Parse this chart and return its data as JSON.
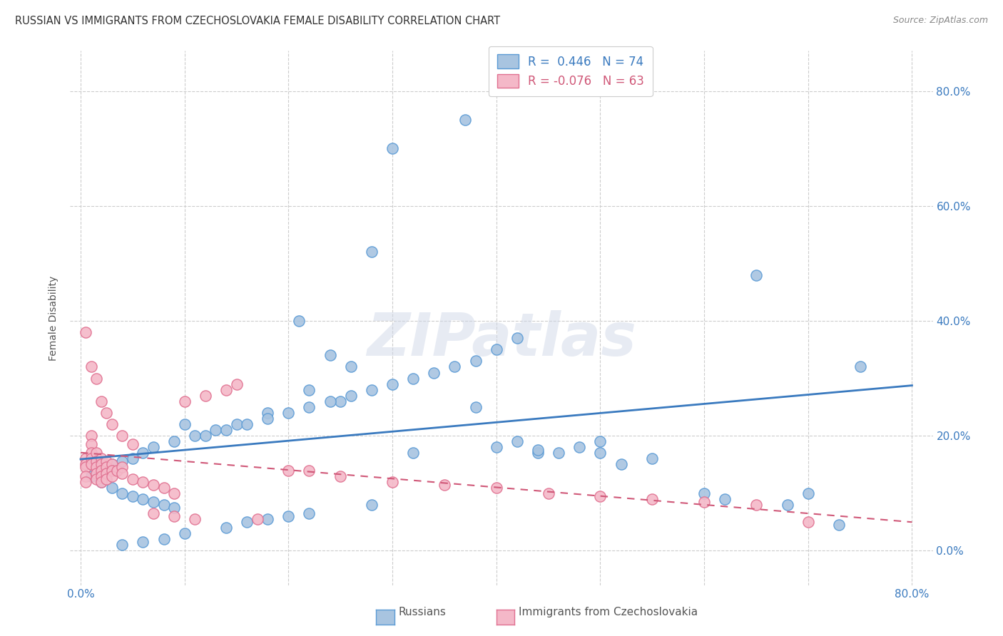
{
  "title": "RUSSIAN VS IMMIGRANTS FROM CZECHOSLOVAKIA FEMALE DISABILITY CORRELATION CHART",
  "source": "Source: ZipAtlas.com",
  "ylabel": "Female Disability",
  "xlim": [
    -0.01,
    0.82
  ],
  "ylim": [
    -0.06,
    0.87
  ],
  "right_ytick_labels": [
    "0.0%",
    "20.0%",
    "40.0%",
    "60.0%",
    "80.0%"
  ],
  "right_ytick_values": [
    0.0,
    0.2,
    0.4,
    0.6,
    0.8
  ],
  "xtick_values": [
    0.0,
    0.1,
    0.2,
    0.3,
    0.4,
    0.5,
    0.6,
    0.7,
    0.8
  ],
  "xtick_labels": [
    "0.0%",
    "",
    "",
    "",
    "",
    "",
    "",
    "",
    "80.0%"
  ],
  "legend_r_blue": "R =  0.446",
  "legend_n_blue": "N = 74",
  "legend_r_pink": "R = -0.076",
  "legend_n_pink": "N = 63",
  "blue_scatter_color": "#a8c4e0",
  "blue_edge_color": "#5b9bd5",
  "pink_scatter_color": "#f4b8c8",
  "pink_edge_color": "#e07090",
  "blue_line_color": "#3a7abf",
  "pink_line_color": "#d05878",
  "watermark": "ZIPatlas",
  "blue_scatter_x": [
    0.3,
    0.37,
    0.28,
    0.65,
    0.75,
    0.21,
    0.24,
    0.26,
    0.22,
    0.25,
    0.18,
    0.15,
    0.13,
    0.11,
    0.09,
    0.07,
    0.06,
    0.05,
    0.04,
    0.03,
    0.02,
    0.01,
    0.02,
    0.03,
    0.04,
    0.05,
    0.06,
    0.07,
    0.08,
    0.09,
    0.1,
    0.12,
    0.14,
    0.16,
    0.18,
    0.2,
    0.22,
    0.24,
    0.26,
    0.28,
    0.3,
    0.32,
    0.34,
    0.36,
    0.38,
    0.4,
    0.42,
    0.44,
    0.5,
    0.52,
    0.38,
    0.4,
    0.32,
    0.28,
    0.22,
    0.2,
    0.18,
    0.16,
    0.14,
    0.1,
    0.08,
    0.06,
    0.04,
    0.55,
    0.6,
    0.62,
    0.68,
    0.7,
    0.73,
    0.5,
    0.46,
    0.48,
    0.42,
    0.44
  ],
  "blue_scatter_y": [
    0.7,
    0.75,
    0.52,
    0.48,
    0.32,
    0.4,
    0.34,
    0.32,
    0.28,
    0.26,
    0.24,
    0.22,
    0.21,
    0.2,
    0.19,
    0.18,
    0.17,
    0.16,
    0.155,
    0.15,
    0.14,
    0.13,
    0.12,
    0.11,
    0.1,
    0.095,
    0.09,
    0.085,
    0.08,
    0.075,
    0.22,
    0.2,
    0.21,
    0.22,
    0.23,
    0.24,
    0.25,
    0.26,
    0.27,
    0.28,
    0.29,
    0.3,
    0.31,
    0.32,
    0.33,
    0.35,
    0.37,
    0.17,
    0.19,
    0.15,
    0.25,
    0.18,
    0.17,
    0.08,
    0.065,
    0.06,
    0.055,
    0.05,
    0.04,
    0.03,
    0.02,
    0.015,
    0.01,
    0.16,
    0.1,
    0.09,
    0.08,
    0.1,
    0.045,
    0.17,
    0.17,
    0.18,
    0.19,
    0.175
  ],
  "pink_scatter_x": [
    0.005,
    0.005,
    0.005,
    0.005,
    0.005,
    0.01,
    0.01,
    0.01,
    0.01,
    0.01,
    0.015,
    0.015,
    0.015,
    0.015,
    0.015,
    0.02,
    0.02,
    0.02,
    0.02,
    0.02,
    0.025,
    0.025,
    0.025,
    0.025,
    0.03,
    0.03,
    0.03,
    0.035,
    0.04,
    0.04,
    0.05,
    0.06,
    0.07,
    0.08,
    0.09,
    0.1,
    0.12,
    0.14,
    0.15,
    0.17,
    0.2,
    0.22,
    0.25,
    0.3,
    0.35,
    0.4,
    0.45,
    0.5,
    0.55,
    0.6,
    0.65,
    0.7,
    0.005,
    0.01,
    0.015,
    0.02,
    0.025,
    0.03,
    0.04,
    0.05,
    0.07,
    0.09,
    0.11
  ],
  "pink_scatter_y": [
    0.16,
    0.15,
    0.145,
    0.13,
    0.12,
    0.2,
    0.185,
    0.17,
    0.16,
    0.15,
    0.17,
    0.155,
    0.145,
    0.135,
    0.125,
    0.16,
    0.15,
    0.14,
    0.13,
    0.12,
    0.155,
    0.145,
    0.135,
    0.125,
    0.15,
    0.14,
    0.13,
    0.14,
    0.145,
    0.135,
    0.125,
    0.12,
    0.115,
    0.11,
    0.1,
    0.26,
    0.27,
    0.28,
    0.29,
    0.055,
    0.14,
    0.14,
    0.13,
    0.12,
    0.115,
    0.11,
    0.1,
    0.095,
    0.09,
    0.085,
    0.08,
    0.05,
    0.38,
    0.32,
    0.3,
    0.26,
    0.24,
    0.22,
    0.2,
    0.185,
    0.065,
    0.06,
    0.055
  ]
}
